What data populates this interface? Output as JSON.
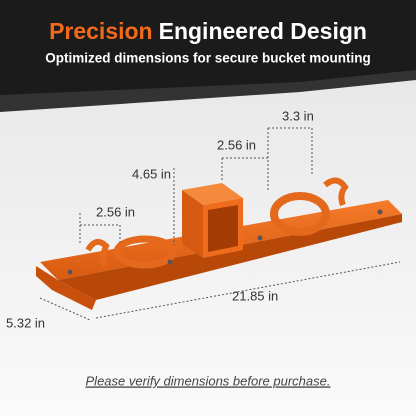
{
  "header": {
    "title_accent": "Precision",
    "title_rest": "Engineered Design",
    "subtitle": "Optimized dimensions for secure bucket mounting"
  },
  "dimensions": {
    "hook_spacing_right": "3.3 in",
    "receiver_to_ring": "2.56 in",
    "receiver_height": "4.65 in",
    "hook_spacing_left": "2.56 in",
    "length": "21.85 in",
    "width": "5.32 in"
  },
  "footer": {
    "note": "Please verify dimensions before purchase."
  }
}
